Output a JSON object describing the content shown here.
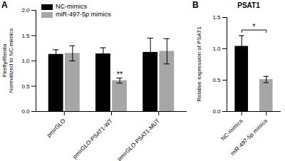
{
  "chart_data": [
    {
      "type": "bar",
      "panel": "A",
      "y_label": "Firefly/Renila\nNormalized to NC-mimics",
      "categories": [
        "pmirGLO",
        "pmirGLO-PSAT1-WT",
        "pmirGLO-PSAT1-MUT"
      ],
      "series": [
        {
          "name": "NC-mimics",
          "color": "#000000",
          "values": [
            1.13,
            1.14,
            1.17
          ],
          "errors": [
            0.09,
            0.12,
            0.28
          ]
        },
        {
          "name": "miR-497-5p mimics",
          "color": "#a6a6a6",
          "values": [
            1.15,
            0.61,
            1.19
          ],
          "errors": [
            0.15,
            0.05,
            0.25
          ]
        }
      ],
      "ylim": [
        0,
        2
      ],
      "yticks": [
        {
          "value": 0,
          "label": "0.0"
        },
        {
          "value": 0.5,
          "label": "0.5"
        },
        {
          "value": 1,
          "label": "1.0"
        },
        {
          "value": 1.5,
          "label": "1.5"
        },
        {
          "value": 2,
          "label": "2.0"
        }
      ],
      "legend": "top-left",
      "annotations": [
        {
          "category": "pmirGLO-PSAT1-WT",
          "series": "miR-497-5p mimics",
          "text": "**"
        }
      ]
    },
    {
      "type": "bar",
      "panel": "B",
      "title": "PSAT1",
      "y_label": "Relative expression of PSAT1",
      "categories": [
        "NC-mimics",
        "miR-497-5p mimics"
      ],
      "values": [
        1.04,
        0.51
      ],
      "errors": [
        0.17,
        0.05
      ],
      "colors": [
        "#000000",
        "#a6a6a6"
      ],
      "ylim": [
        0,
        1.5
      ],
      "yticks": [
        {
          "value": 0,
          "label": "0.0"
        },
        {
          "value": 0.5,
          "label": "0.5"
        },
        {
          "value": 1,
          "label": "1.0"
        },
        {
          "value": 1.5,
          "label": "1.5"
        }
      ],
      "annotations": [
        {
          "from": "NC-mimics",
          "to": "miR-497-5p mimics",
          "text": "*"
        }
      ]
    }
  ]
}
